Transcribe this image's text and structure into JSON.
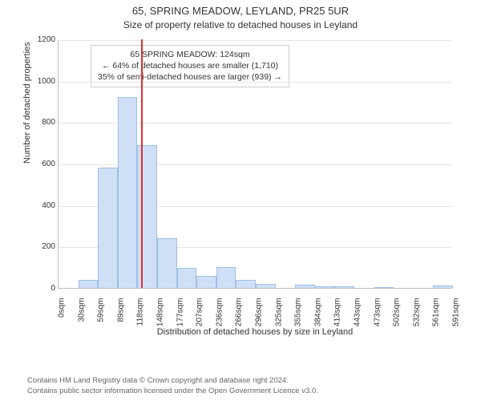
{
  "title": "65, SPRING MEADOW, LEYLAND, PR25 5UR",
  "subtitle": "Size of property relative to detached houses in Leyland",
  "chart": {
    "type": "histogram",
    "ylim": [
      0,
      1200
    ],
    "ytick_step": 200,
    "yticks": [
      0,
      200,
      400,
      600,
      800,
      1000,
      1200
    ],
    "ylabel": "Number of detached properties",
    "xlabel": "Distribution of detached houses by size in Leyland",
    "xticks": [
      "0sqm",
      "30sqm",
      "59sqm",
      "89sqm",
      "118sqm",
      "148sqm",
      "177sqm",
      "207sqm",
      "236sqm",
      "266sqm",
      "296sqm",
      "325sqm",
      "355sqm",
      "384sqm",
      "413sqm",
      "443sqm",
      "473sqm",
      "502sqm",
      "532sqm",
      "561sqm",
      "591sqm"
    ],
    "values": [
      0,
      40,
      580,
      920,
      690,
      240,
      95,
      60,
      100,
      40,
      20,
      0,
      15,
      8,
      6,
      0,
      5,
      0,
      0,
      12
    ],
    "bar_fill": "#cfe0f6",
    "bar_stroke": "#9fbfe6",
    "grid_color": "#e6e6e6",
    "axis_color": "#bfbfbf",
    "reference_line": {
      "value_sqm": 124,
      "color": "#e03030"
    },
    "annotation": {
      "line1": "65 SPRING MEADOW: 124sqm",
      "line2": "← 64% of detached houses are smaller (1,710)",
      "line3": "35% of semi-detached houses are larger (939) →",
      "border_color": "#cccccc"
    }
  },
  "footer": {
    "line1": "Contains HM Land Registry data © Crown copyright and database right 2024.",
    "line2": "Contains public sector information licensed under the Open Government Licence v3.0."
  }
}
